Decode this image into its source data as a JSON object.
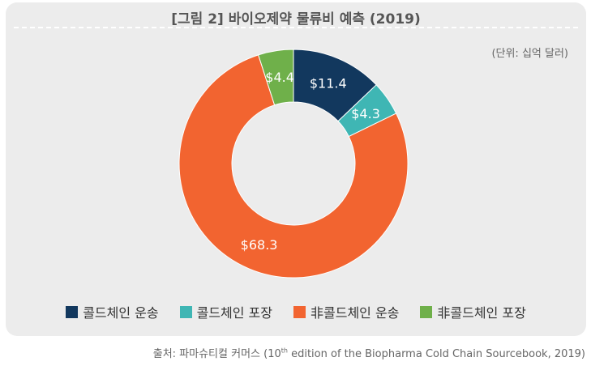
{
  "title": "[그림 2] 바이오제약 물류비 예측 (2019)",
  "unit": "(단위: 십억 달러)",
  "source": {
    "prefix": "출처: 파마슈티컬 커머스 (10",
    "superscript": "th",
    "suffix": " edition of the Biopharma Cold Chain Sourcebook, 2019)"
  },
  "chart_data": {
    "type": "pie",
    "variant": "donut",
    "series": [
      {
        "name": "콜드체인 운송",
        "value": 11.4,
        "label": "$11.4",
        "color": "#12385e"
      },
      {
        "name": "콜드체인 포장",
        "value": 4.3,
        "label": "$4.3",
        "color": "#3fb6b4"
      },
      {
        "name": "非콜드체인 운송",
        "value": 68.3,
        "label": "$68.3",
        "color": "#f26430"
      },
      {
        "name": "非콜드체인 포장",
        "value": 4.4,
        "label": "$4.4",
        "color": "#6fb04a"
      }
    ],
    "legend_position": "bottom"
  }
}
